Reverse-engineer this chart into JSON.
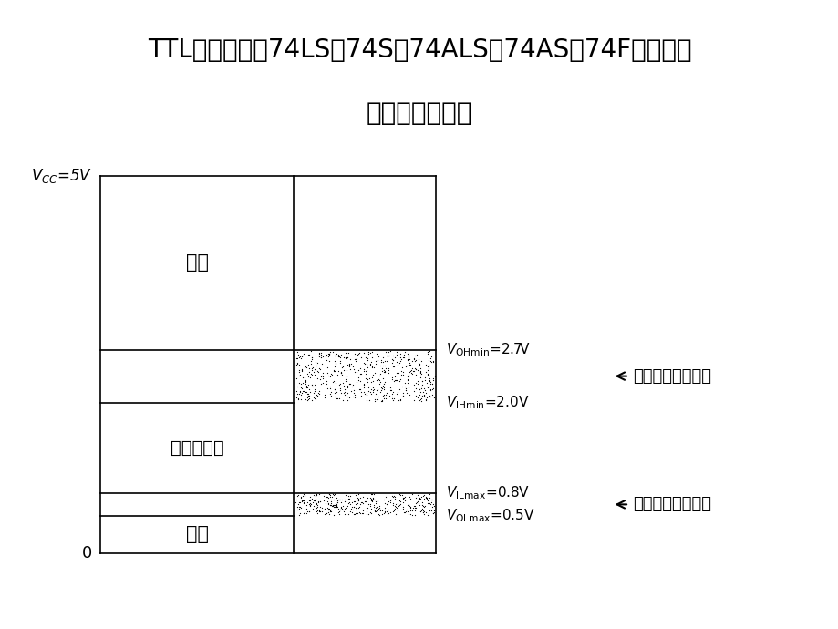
{
  "title_line1": "TTL逻辑系列（74LS、74S、74ALS、74AS、74F）的逻辑",
  "title_line2": "电平和噪声容限",
  "title_fontsize": 20,
  "background_color": "#ffffff",
  "vcc_label_normal": "=5V",
  "vcc_subscript": "CC",
  "zero_label": "0",
  "vcc": 5.0,
  "VOHmin": 2.7,
  "VIHmin": 2.0,
  "VILmax": 0.8,
  "VOLmax": 0.5,
  "text_high": "高态",
  "text_abnormal": "不正常状态",
  "text_low": "低态",
  "text_high_noise": "高态直流噪声容限",
  "text_low_noise": "低态直流噪声容限"
}
